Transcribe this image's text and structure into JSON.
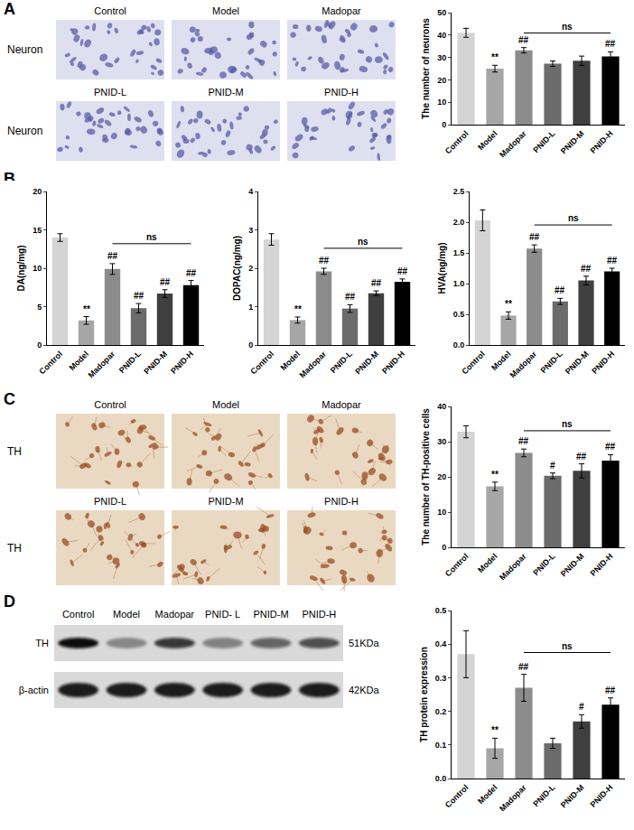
{
  "chart_data": [
    {
      "panel": "A",
      "type": "bar",
      "y_label": "The number of neurons",
      "categories": [
        "Control",
        "Model",
        "Madopar",
        "PNID-L",
        "PNID-M",
        "PNID-H"
      ],
      "values": [
        41,
        25,
        33.2,
        27.2,
        28.5,
        30.4
      ],
      "errors": [
        2,
        1.5,
        1.2,
        1.2,
        2.1,
        2.1
      ],
      "colors": [
        "#d4d4d4",
        "#a6a6a6",
        "#8c8c8c",
        "#6b6b6b",
        "#3f3f3f",
        "#000000"
      ],
      "ylim": [
        0,
        50
      ],
      "yticks": [
        0,
        10,
        20,
        30,
        40,
        50
      ],
      "annotations": [
        null,
        "**",
        "##",
        null,
        null,
        "##"
      ],
      "bracket": {
        "from": "Madopar",
        "to": "PNID-H",
        "text": "ns"
      }
    },
    {
      "panel": "B",
      "type": "bar",
      "y_label": "DA(ng/mg)",
      "categories": [
        "Control",
        "Model",
        "Madopar",
        "PNID-L",
        "PNID-M",
        "PNID-H"
      ],
      "values": [
        14,
        3.2,
        9.9,
        4.8,
        6.7,
        7.8
      ],
      "errors": [
        0.5,
        0.5,
        0.7,
        0.6,
        0.5,
        0.6
      ],
      "colors": [
        "#d4d4d4",
        "#a6a6a6",
        "#8c8c8c",
        "#6b6b6b",
        "#3f3f3f",
        "#000000"
      ],
      "ylim": [
        0,
        20
      ],
      "yticks": [
        0,
        5,
        10,
        15,
        20
      ],
      "annotations": [
        null,
        "**",
        "##",
        "##",
        "##",
        "##"
      ],
      "bracket": {
        "from": "Madopar",
        "to": "PNID-H",
        "text": "ns"
      }
    },
    {
      "panel": "B",
      "type": "bar",
      "y_label": "DOPAC(ng/mg)",
      "categories": [
        "Control",
        "Model",
        "Madopar",
        "PNID-L",
        "PNID-M",
        "PNID-H"
      ],
      "values": [
        2.75,
        0.65,
        1.92,
        0.95,
        1.35,
        1.65
      ],
      "errors": [
        0.15,
        0.08,
        0.08,
        0.1,
        0.06,
        0.07
      ],
      "colors": [
        "#d4d4d4",
        "#a6a6a6",
        "#8c8c8c",
        "#6b6b6b",
        "#3f3f3f",
        "#000000"
      ],
      "ylim": [
        0,
        4
      ],
      "yticks": [
        0,
        1,
        2,
        3,
        4
      ],
      "annotations": [
        null,
        "**",
        "##",
        "##",
        "##",
        "##"
      ],
      "bracket": {
        "from": "Madopar",
        "to": "PNID-H",
        "text": "ns"
      }
    },
    {
      "panel": "B",
      "type": "bar",
      "y_label": "HVA(ng/mg)",
      "categories": [
        "Control",
        "Model",
        "Madopar",
        "PNID-L",
        "PNID-M",
        "PNID-H"
      ],
      "values": [
        2.03,
        0.48,
        1.57,
        0.71,
        1.05,
        1.2
      ],
      "errors": [
        0.17,
        0.06,
        0.06,
        0.05,
        0.07,
        0.05
      ],
      "colors": [
        "#d4d4d4",
        "#a6a6a6",
        "#8c8c8c",
        "#6b6b6b",
        "#3f3f3f",
        "#000000"
      ],
      "ylim": [
        0,
        2.5
      ],
      "yticks": [
        {
          "value": 0,
          "label": "0.0"
        },
        0.5,
        {
          "value": 1,
          "label": "1.0"
        },
        1.5,
        {
          "value": 2,
          "label": "2.0"
        },
        2.5
      ],
      "annotations": [
        null,
        "**",
        "##",
        "##",
        "##",
        "##"
      ],
      "bracket": {
        "from": "Madopar",
        "to": "PNID-H",
        "text": "ns"
      }
    },
    {
      "panel": "C",
      "type": "bar",
      "y_label": "The number of TH-positive cells",
      "categories": [
        "Control",
        "Model",
        "Madopar",
        "PNID-L",
        "PNID-M",
        "PNID-H"
      ],
      "values": [
        32.8,
        17.3,
        26.8,
        20.3,
        21.7,
        24.6
      ],
      "errors": [
        1.7,
        1.2,
        1.1,
        0.8,
        2,
        1.7
      ],
      "colors": [
        "#d4d4d4",
        "#a6a6a6",
        "#8c8c8c",
        "#6b6b6b",
        "#3f3f3f",
        "#000000"
      ],
      "ylim": [
        0,
        40
      ],
      "yticks": [
        0,
        10,
        20,
        30,
        40
      ],
      "annotations": [
        null,
        "**",
        "##",
        "#",
        "##",
        "##"
      ],
      "bracket": {
        "from": "Madopar",
        "to": "PNID-H",
        "text": "ns"
      }
    },
    {
      "panel": "D",
      "type": "bar",
      "y_label": "TH protein expression",
      "categories": [
        "Control",
        "Model",
        "Madopar",
        "PNID-L",
        "PNID-M",
        "PNID-H"
      ],
      "values": [
        0.37,
        0.09,
        0.27,
        0.105,
        0.17,
        0.22
      ],
      "errors": [
        0.07,
        0.03,
        0.04,
        0.015,
        0.02,
        0.02
      ],
      "colors": [
        "#d4d4d4",
        "#a6a6a6",
        "#8c8c8c",
        "#6b6b6b",
        "#3f3f3f",
        "#000000"
      ],
      "ylim": [
        0,
        0.5
      ],
      "yticks": [
        {
          "value": 0,
          "label": "0.0"
        },
        0.1,
        0.2,
        0.3,
        0.4,
        0.5
      ],
      "annotations": [
        null,
        "**",
        "##",
        null,
        "#",
        "##"
      ],
      "bracket": {
        "from": "Madopar",
        "to": "PNID-H",
        "text": "ns"
      }
    }
  ],
  "image_panels": [
    {
      "panel": "A",
      "row_label": "Neuron",
      "labels": [
        "Control",
        "Model",
        "Madopar",
        "PNID-L",
        "PNID-M",
        "PNID-H"
      ]
    },
    {
      "panel": "C",
      "row_label": "TH",
      "labels": [
        "Control",
        "Model",
        "Madopar",
        "PNID-L",
        "PNID-M",
        "PNID-H"
      ]
    }
  ],
  "blot": {
    "panel": "D",
    "lanes": [
      "Control",
      "Model",
      "Madopar",
      "PNID- L",
      "PNID-M",
      "PNID-H"
    ],
    "rows": [
      {
        "name": "TH",
        "size": "51KDa"
      },
      {
        "name": "β-actin",
        "size": "42KDa"
      }
    ]
  }
}
